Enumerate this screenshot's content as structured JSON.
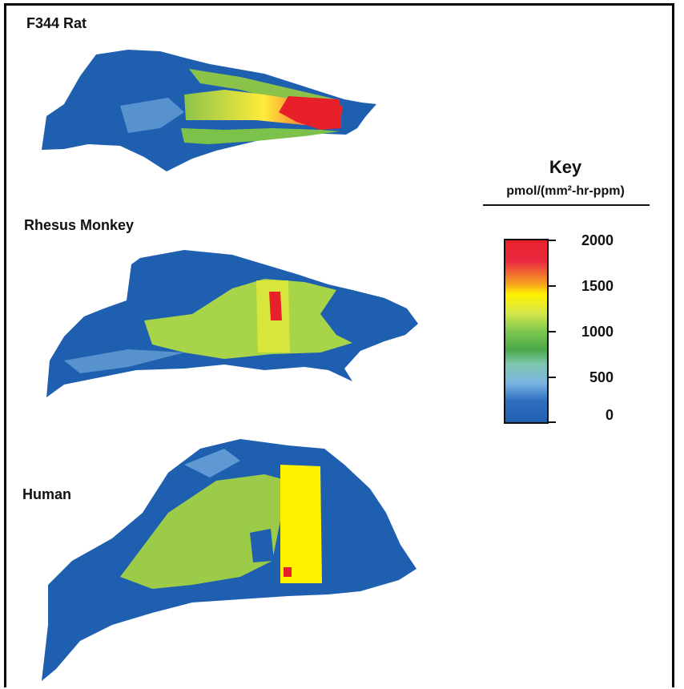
{
  "figure": {
    "panels": [
      {
        "label": "F344 Rat"
      },
      {
        "label": "Rhesus Monkey"
      },
      {
        "label": "Human"
      }
    ],
    "key": {
      "title": "Key",
      "unit": "pmol/(mm²-hr-ppm)",
      "ticks": [
        "2000",
        "1500",
        "1000",
        "500",
        "0"
      ],
      "scale_min": 0,
      "scale_max": 2000,
      "colors": {
        "low": "#1f5fb0",
        "light_blue": "#6fa8dc",
        "green": "#4caf50",
        "yellow_green": "#b5d930",
        "yellow": "#fff200",
        "red": "#e8202a"
      }
    }
  }
}
